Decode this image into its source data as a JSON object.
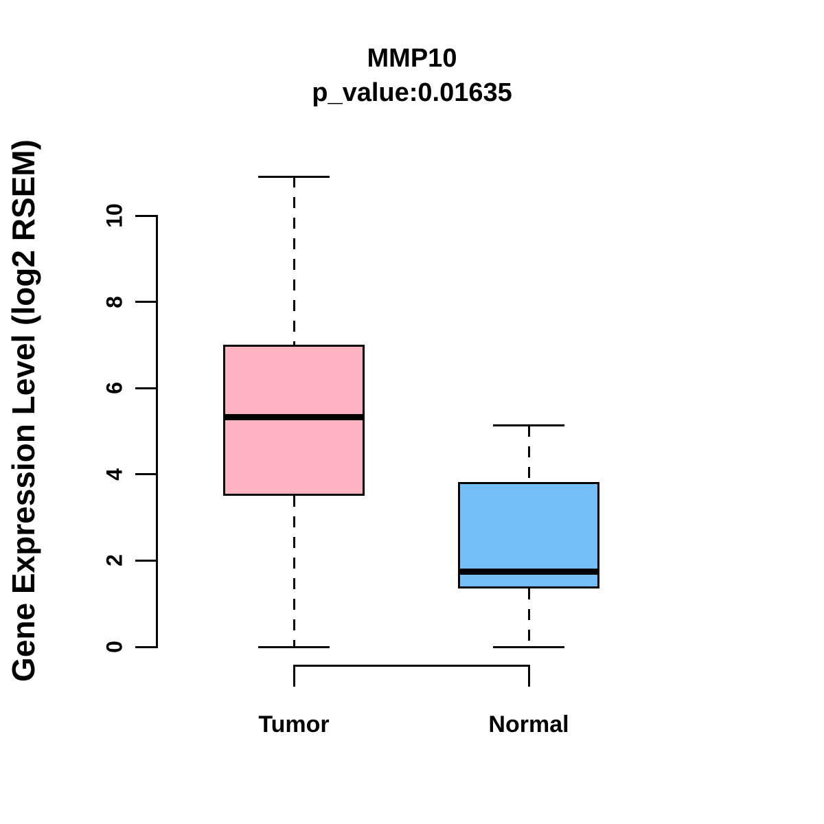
{
  "chart_data": {
    "type": "boxplot",
    "title": "MMP10",
    "subtitle": "p_value:0.01635",
    "ylabel": "Gene Expression Level (log2 RSEM)",
    "xlabel": "",
    "yticks": [
      0,
      2,
      4,
      6,
      8,
      10
    ],
    "ylim": [
      0,
      10.9
    ],
    "grid": false,
    "legend": "none",
    "line_color": "#000000",
    "groups": [
      {
        "label": "Tumor",
        "color": "#FFB3C1",
        "whisker_low": 0,
        "q1": 3.5,
        "median": 5.32,
        "q3": 7.0,
        "whisker_high": 10.9
      },
      {
        "label": "Normal",
        "color": "#74BFF8",
        "whisker_low": 0,
        "q1": 1.35,
        "median": 1.75,
        "q3": 3.82,
        "whisker_high": 5.13
      }
    ]
  }
}
